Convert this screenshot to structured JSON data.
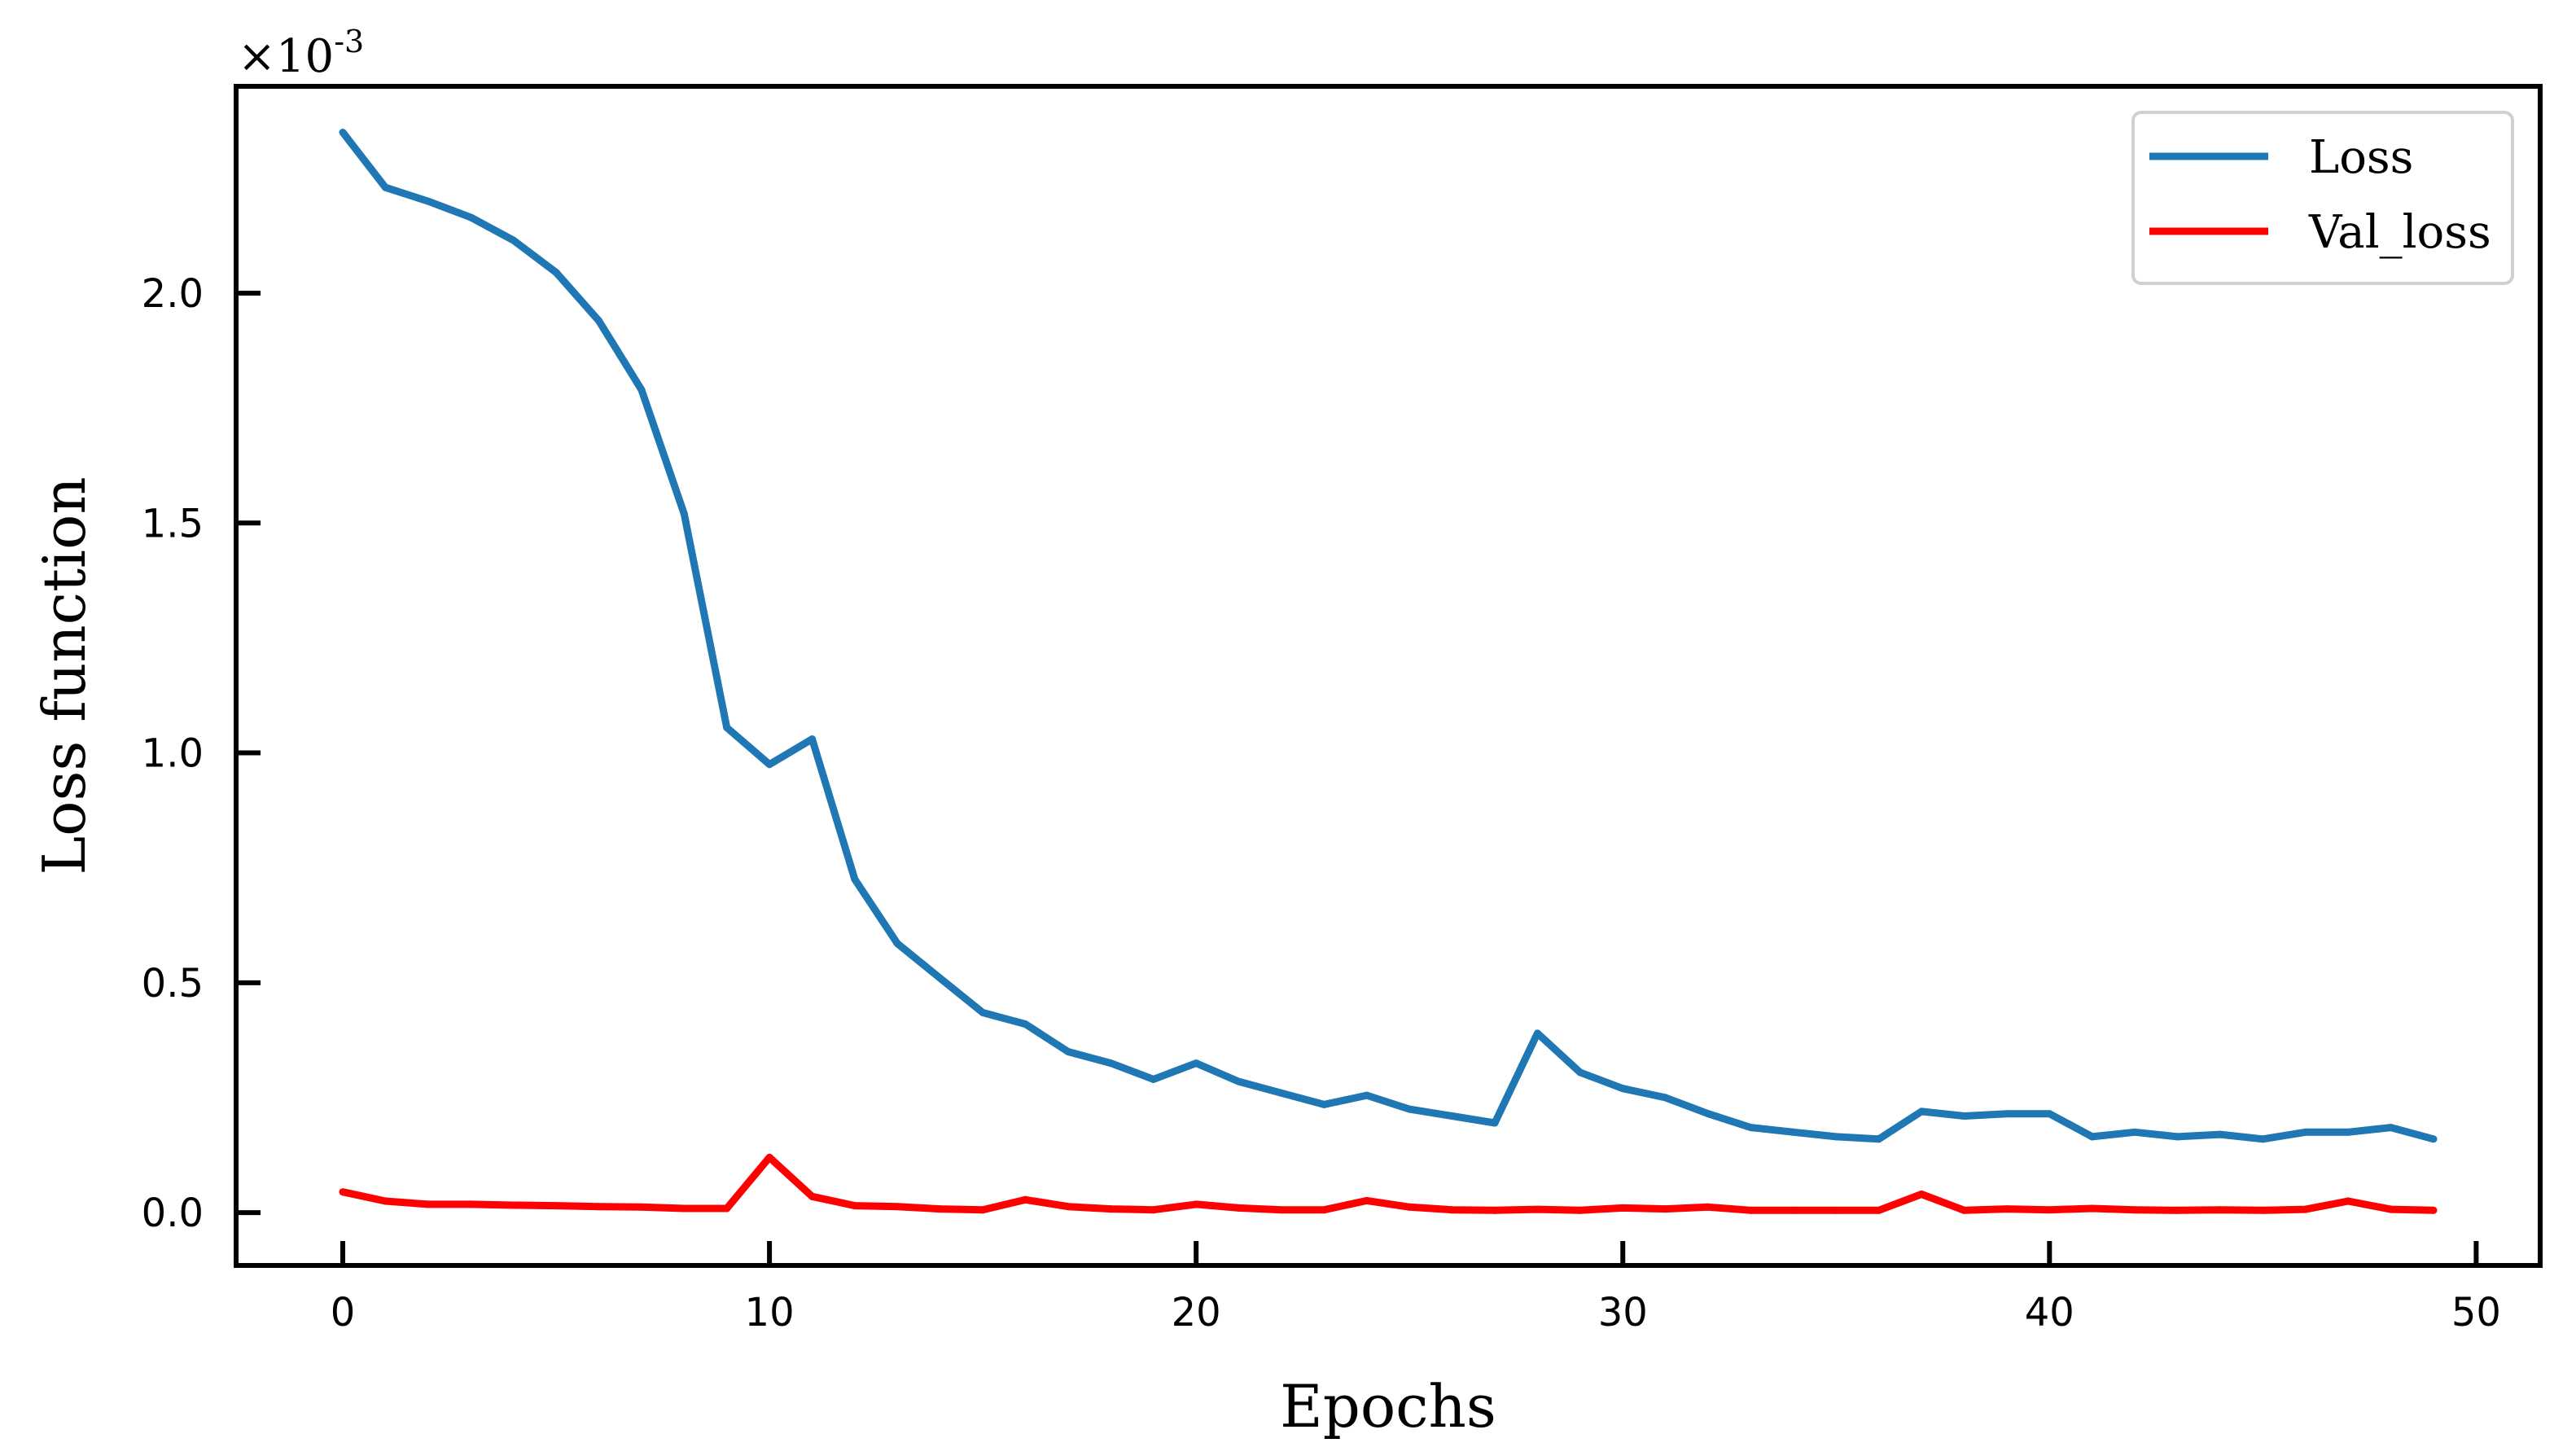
{
  "chart_data": {
    "type": "line",
    "xlabel": "Epochs",
    "ylabel": "Loss function",
    "y_scale_base": "×10",
    "y_scale_exponent": "-3",
    "xlim": [
      -2.5,
      51.5
    ],
    "ylim": [
      -0.115,
      2.45
    ],
    "x_ticks": [
      0,
      10,
      20,
      30,
      40,
      50
    ],
    "x_tick_labels": [
      "0",
      "10",
      "20",
      "30",
      "40",
      "50"
    ],
    "y_ticks": [
      0.0,
      0.5,
      1.0,
      1.5,
      2.0
    ],
    "y_tick_labels": [
      "0.0",
      "0.5",
      "1.0",
      "1.5",
      "2.0"
    ],
    "tick_direction": "in",
    "grid": false,
    "legend_position": "top-right",
    "x": [
      0,
      1,
      2,
      3,
      4,
      5,
      6,
      7,
      8,
      9,
      10,
      11,
      12,
      13,
      14,
      15,
      16,
      17,
      18,
      19,
      20,
      21,
      22,
      23,
      24,
      25,
      26,
      27,
      28,
      29,
      30,
      31,
      32,
      33,
      34,
      35,
      36,
      37,
      38,
      39,
      40,
      41,
      42,
      43,
      44,
      45,
      46,
      47,
      48,
      49
    ],
    "series": [
      {
        "name": "Loss",
        "color": "#1f77b4",
        "values": [
          2.35,
          2.23,
          2.2,
          2.165,
          2.115,
          2.045,
          1.94,
          1.79,
          1.52,
          1.055,
          0.975,
          1.03,
          0.725,
          0.585,
          0.51,
          0.435,
          0.41,
          0.35,
          0.325,
          0.29,
          0.325,
          0.285,
          0.26,
          0.235,
          0.255,
          0.225,
          0.21,
          0.195,
          0.39,
          0.305,
          0.27,
          0.25,
          0.215,
          0.185,
          0.175,
          0.165,
          0.16,
          0.22,
          0.21,
          0.215,
          0.215,
          0.165,
          0.175,
          0.165,
          0.17,
          0.16,
          0.175,
          0.175,
          0.185,
          0.16
        ]
      },
      {
        "name": "Val_loss",
        "color": "#ff0000",
        "values": [
          0.045,
          0.025,
          0.018,
          0.018,
          0.016,
          0.015,
          0.013,
          0.012,
          0.009,
          0.009,
          0.12,
          0.035,
          0.015,
          0.013,
          0.008,
          0.006,
          0.028,
          0.013,
          0.008,
          0.006,
          0.018,
          0.01,
          0.006,
          0.006,
          0.026,
          0.012,
          0.006,
          0.005,
          0.007,
          0.005,
          0.01,
          0.008,
          0.012,
          0.005,
          0.005,
          0.005,
          0.005,
          0.04,
          0.005,
          0.008,
          0.006,
          0.009,
          0.006,
          0.005,
          0.006,
          0.005,
          0.007,
          0.025,
          0.007,
          0.005
        ]
      }
    ]
  }
}
